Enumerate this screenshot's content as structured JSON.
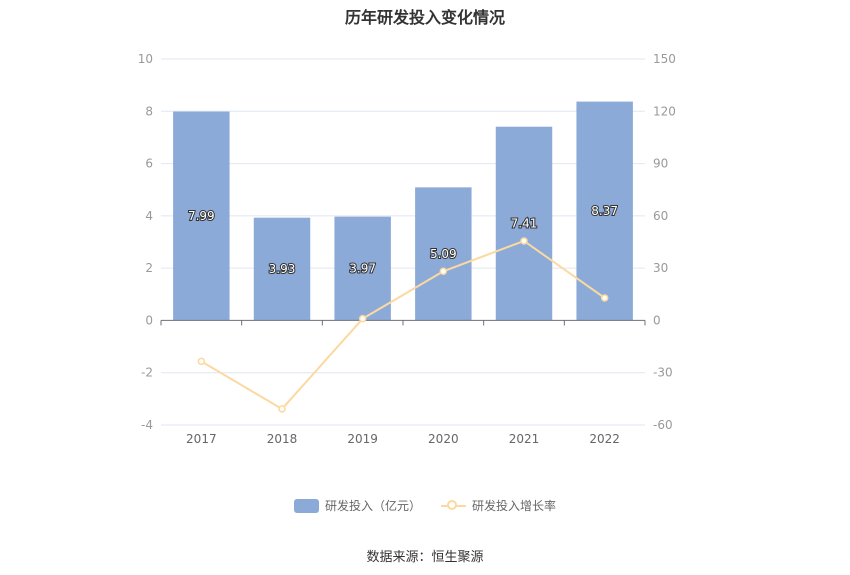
{
  "chart_data": {
    "type": "bar",
    "title": "历年研发投入变化情况",
    "categories": [
      "2017",
      "2018",
      "2019",
      "2020",
      "2021",
      "2022"
    ],
    "series": [
      {
        "name": "研发投入（亿元）",
        "type": "bar",
        "axis": "left",
        "values": [
          7.99,
          3.93,
          3.97,
          5.09,
          7.41,
          8.37
        ],
        "color": "#8caad8"
      },
      {
        "name": "研发投入增长率",
        "type": "line",
        "axis": "right",
        "values": [
          -23.5,
          -50.8,
          1.0,
          28.2,
          45.6,
          12.9
        ],
        "color": "#fbd9a0"
      }
    ],
    "y_left": {
      "ylim": [
        -4,
        10
      ],
      "ticks": [
        "10",
        "8",
        "6",
        "4",
        "2",
        "0",
        "-2",
        "-4"
      ]
    },
    "y_right": {
      "ylim": [
        -60,
        150
      ],
      "ticks": [
        "150",
        "120",
        "90",
        "60",
        "30",
        "0",
        "-30",
        "-60"
      ]
    },
    "grid": true,
    "legend_position": "bottom"
  },
  "source": "数据来源：恒生聚源"
}
